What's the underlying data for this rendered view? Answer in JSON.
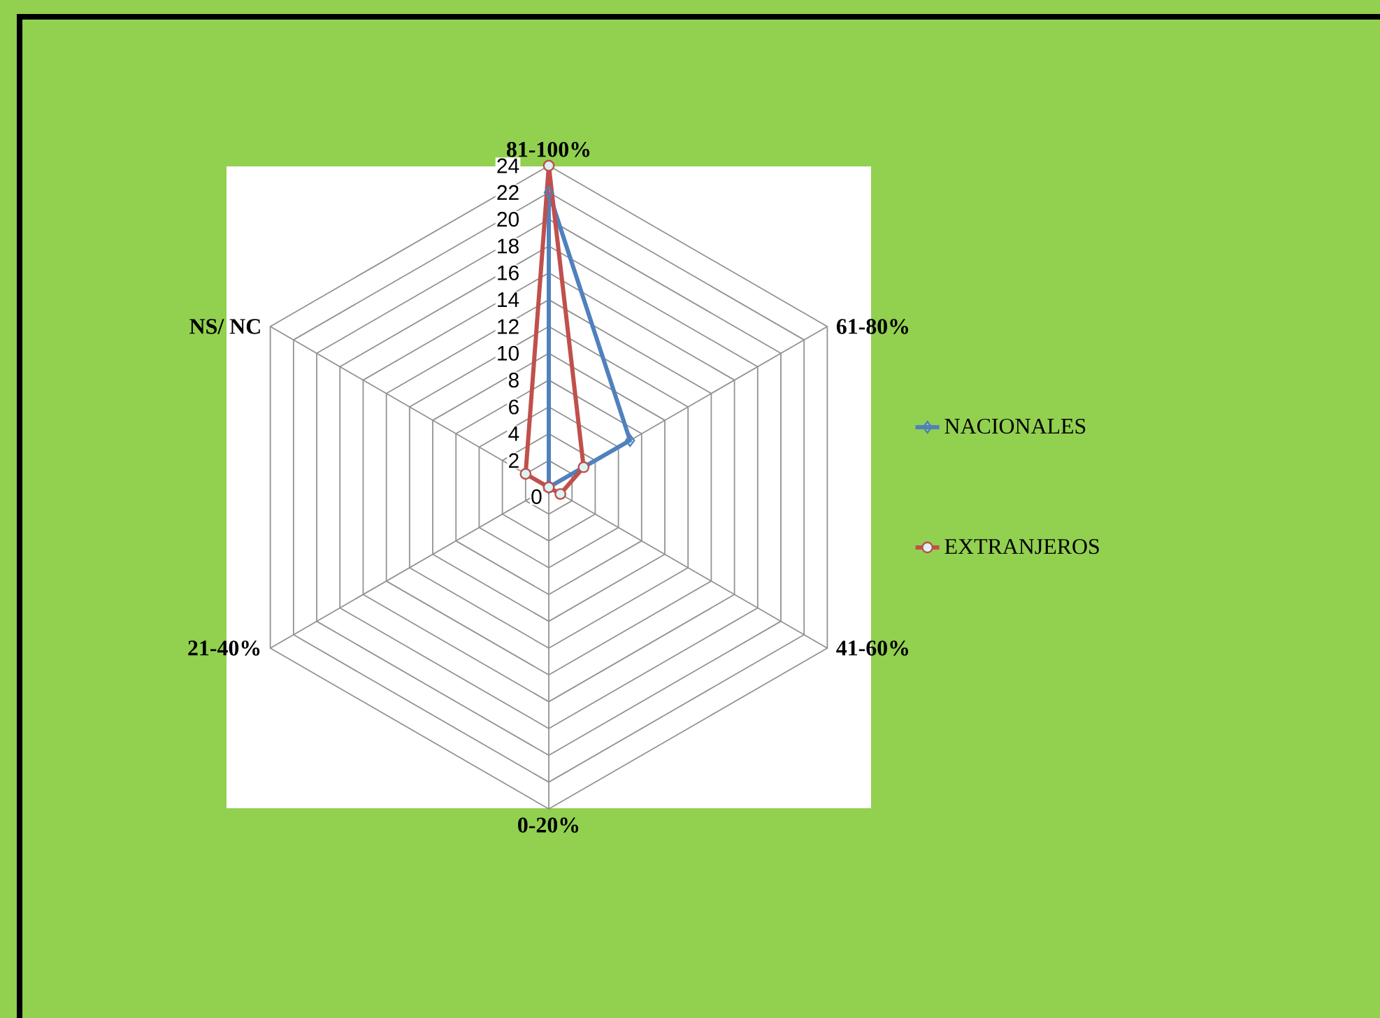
{
  "chart_data": {
    "type": "radar",
    "categories": [
      "81-100%",
      "61-80%",
      "41-60%",
      "0-20%",
      "21-40%",
      "NS/ NC"
    ],
    "series": [
      {
        "name": "NACIONALES",
        "color": "#4f81bd",
        "marker": "diamond",
        "values": [
          22,
          7,
          0,
          0,
          0,
          0
        ]
      },
      {
        "name": "EXTRANJEROS",
        "color": "#c0504d",
        "marker": "circle",
        "values": [
          24,
          3,
          1,
          0,
          0,
          2
        ]
      }
    ],
    "ylim": [
      0,
      24
    ],
    "yticks": [
      0,
      2,
      4,
      6,
      8,
      10,
      12,
      14,
      16,
      18,
      20,
      22,
      24
    ],
    "grid": true,
    "legend": "right"
  }
}
